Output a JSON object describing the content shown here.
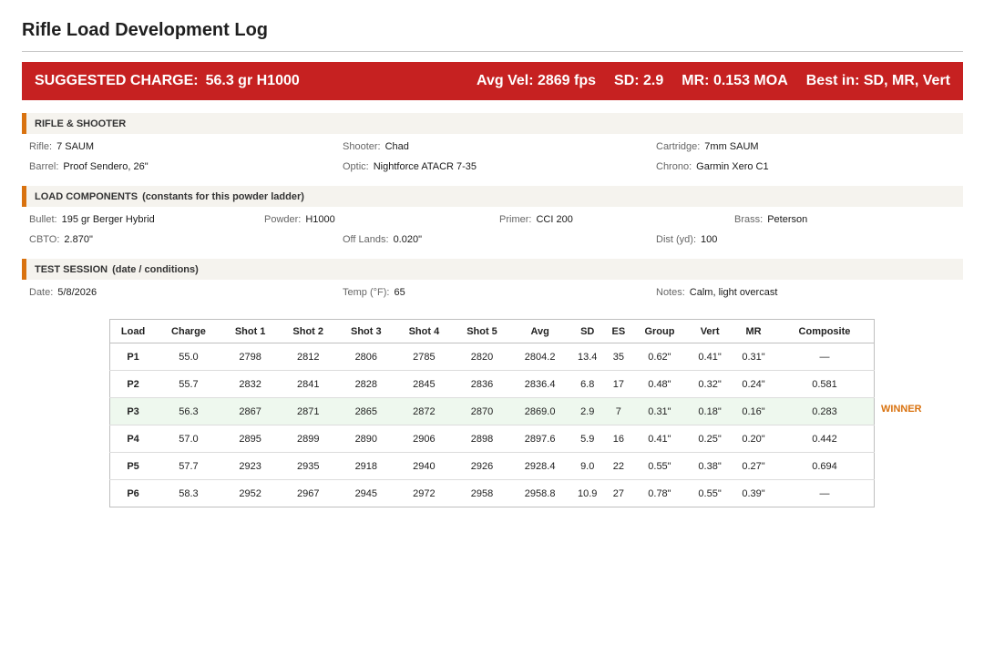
{
  "title": "Rifle Load Development Log",
  "banner": {
    "charge_label": "SUGGESTED CHARGE:",
    "charge_value": "56.3 gr H1000",
    "avg_vel": "Avg Vel: 2869 fps",
    "sd": "SD: 2.9",
    "mr": "MR: 0.153 MOA",
    "best": "Best in: SD, MR, Vert",
    "color": "#c62121"
  },
  "rifle": {
    "heading": "RIFLE & SHOOTER",
    "rifle_label": "Rifle:",
    "rifle_value": "7 SAUM",
    "shooter_label": "Shooter:",
    "shooter_value": "Chad",
    "cartridge_label": "Cartridge:",
    "cartridge_value": "7mm SAUM",
    "barrel_label": "Barrel:",
    "barrel_value": "Proof Sendero, 26\"",
    "optic_label": "Optic:",
    "optic_value": "Nightforce ATACR 7-35",
    "chrono_label": "Chrono:",
    "chrono_value": "Garmin Xero C1"
  },
  "components": {
    "heading": "LOAD COMPONENTS",
    "subheading": "(constants for this powder ladder)",
    "bullet_label": "Bullet:",
    "bullet_value": "195 gr Berger Hybrid",
    "powder_label": "Powder:",
    "powder_value": "H1000",
    "primer_label": "Primer:",
    "primer_value": "CCI 200",
    "brass_label": "Brass:",
    "brass_value": "Peterson",
    "cbto_label": "CBTO:",
    "cbto_value": "2.870\"",
    "offlands_label": "Off Lands:",
    "offlands_value": "0.020\"",
    "dist_label": "Dist (yd):",
    "dist_value": "100"
  },
  "session": {
    "heading": "TEST SESSION",
    "subheading": "(date / conditions)",
    "date_label": "Date:",
    "date_value": "5/8/2026",
    "temp_label": "Temp (°F):",
    "temp_value": "65",
    "notes_label": "Notes:",
    "notes_value": "Calm, light overcast"
  },
  "table": {
    "headers": [
      "Load",
      "Charge",
      "Shot 1",
      "Shot 2",
      "Shot 3",
      "Shot 4",
      "Shot 5",
      "Avg",
      "SD",
      "ES",
      "Group",
      "Vert",
      "MR",
      "Composite"
    ],
    "rows": [
      [
        "P1",
        "55.0",
        "2798",
        "2812",
        "2806",
        "2785",
        "2820",
        "2804.2",
        "13.4",
        "35",
        "0.62\"",
        "0.41\"",
        "0.31\"",
        "—"
      ],
      [
        "P2",
        "55.7",
        "2832",
        "2841",
        "2828",
        "2845",
        "2836",
        "2836.4",
        "6.8",
        "17",
        "0.48\"",
        "0.32\"",
        "0.24\"",
        "0.581"
      ],
      [
        "P3",
        "56.3",
        "2867",
        "2871",
        "2865",
        "2872",
        "2870",
        "2869.0",
        "2.9",
        "7",
        "0.31\"",
        "0.18\"",
        "0.16\"",
        "0.283"
      ],
      [
        "P4",
        "57.0",
        "2895",
        "2899",
        "2890",
        "2906",
        "2898",
        "2897.6",
        "5.9",
        "16",
        "0.41\"",
        "0.25\"",
        "0.20\"",
        "0.442"
      ],
      [
        "P5",
        "57.7",
        "2923",
        "2935",
        "2918",
        "2940",
        "2926",
        "2928.4",
        "9.0",
        "22",
        "0.55\"",
        "0.38\"",
        "0.27\"",
        "0.694"
      ],
      [
        "P6",
        "58.3",
        "2952",
        "2967",
        "2945",
        "2972",
        "2958",
        "2958.8",
        "10.9",
        "27",
        "0.78\"",
        "0.55\"",
        "0.39\"",
        "—"
      ]
    ],
    "winner_index": 2,
    "winner_label": "WINNER",
    "winner_color": "#d9720f"
  }
}
